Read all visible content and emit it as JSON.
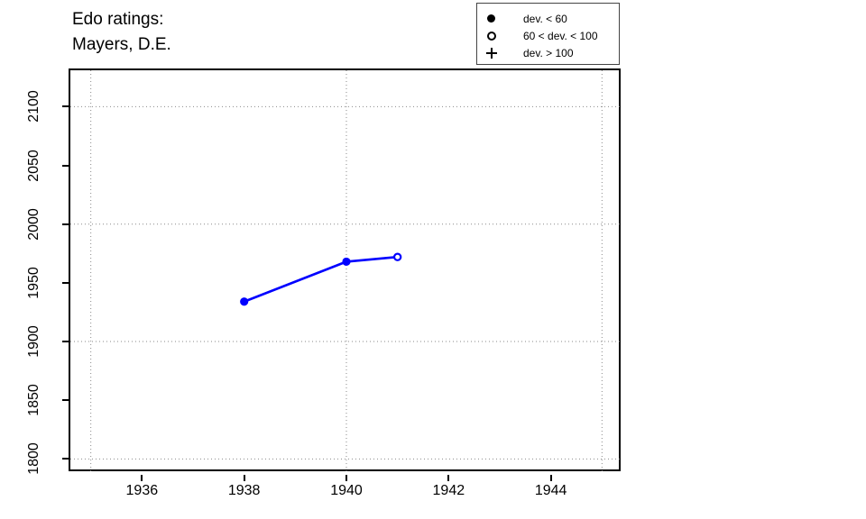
{
  "title": {
    "line1": "Edo ratings:",
    "line2": "Mayers, D.E."
  },
  "legend": {
    "items": [
      {
        "symbol": "filled-circle",
        "label": "dev. < 60"
      },
      {
        "symbol": "open-circle",
        "label": "60 < dev. < 100"
      },
      {
        "symbol": "plus",
        "label": "dev. > 100"
      }
    ]
  },
  "chart_data": {
    "type": "line",
    "title": "Edo ratings: Mayers, D.E.",
    "xlabel": "",
    "ylabel": "",
    "xlim": [
      1934.6,
      1945.4
    ],
    "ylim": [
      1788,
      2131
    ],
    "x_ticks": [
      1936,
      1938,
      1940,
      1942,
      1944
    ],
    "y_ticks": [
      1800,
      1850,
      1900,
      1950,
      2000,
      2050,
      2100
    ],
    "x_gridlines": [
      1935,
      1940,
      1945
    ],
    "y_gridlines": [
      1800,
      1900,
      2000,
      2100
    ],
    "grid_style": "dotted",
    "grid_color": "#8a8a8a",
    "line_color": "#0000ff",
    "series": [
      {
        "name": "Mayers, D.E.",
        "points": [
          {
            "x": 1938,
            "y": 1934,
            "marker": "filled-circle",
            "dev_class": "dev. < 60"
          },
          {
            "x": 1940,
            "y": 1968,
            "marker": "filled-circle",
            "dev_class": "dev. < 60"
          },
          {
            "x": 1941,
            "y": 1972,
            "marker": "open-circle",
            "dev_class": "60 < dev. < 100"
          }
        ]
      }
    ]
  }
}
